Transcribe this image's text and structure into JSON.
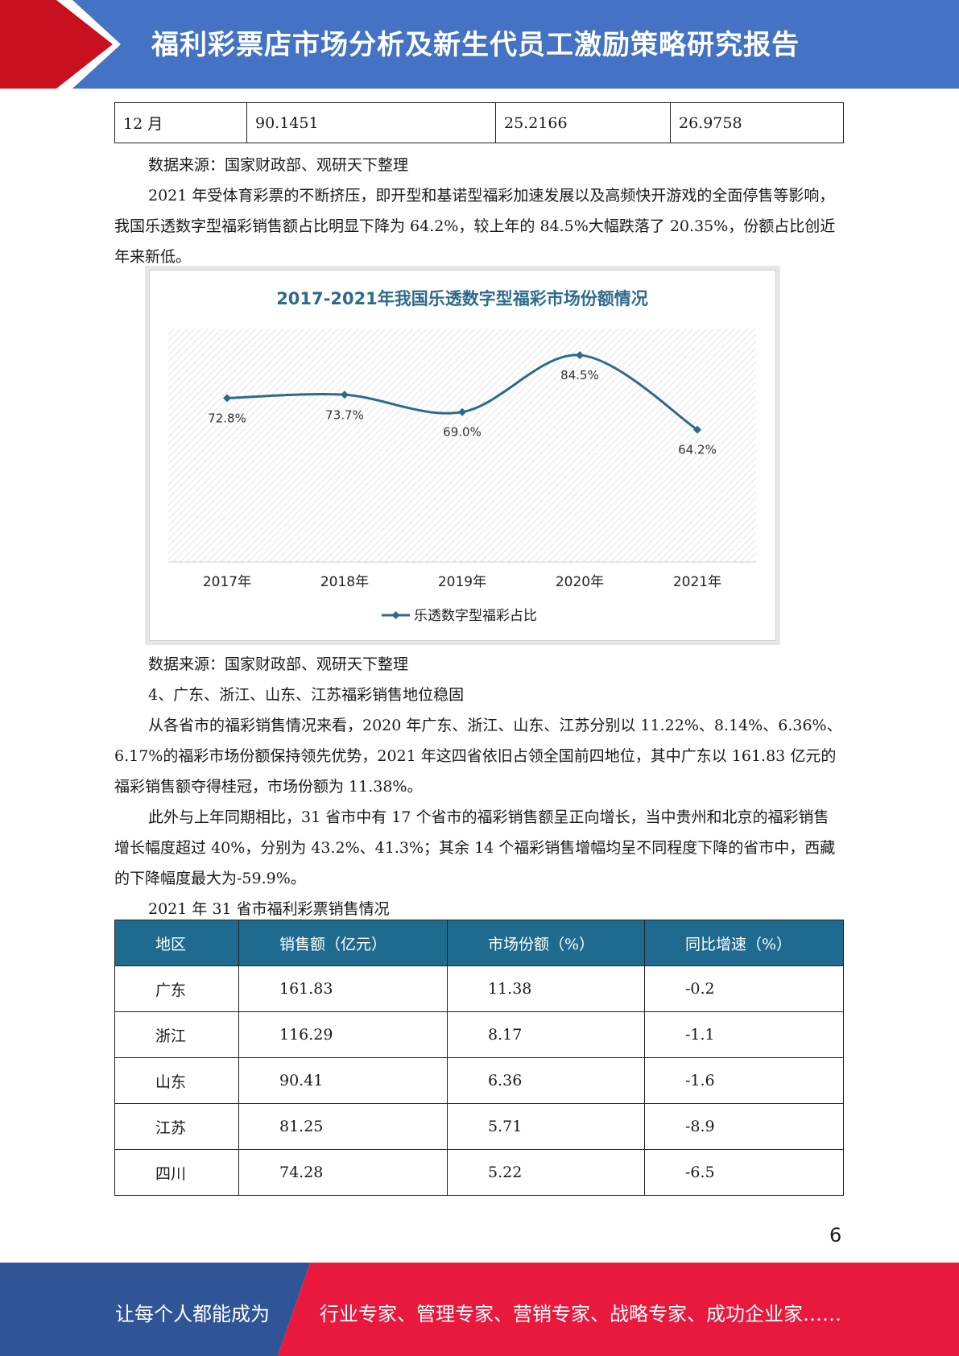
{
  "header": {
    "title": "福利彩票店市场分析及新生代员工激励策略研究报告",
    "accent_red": "#c8101e",
    "accent_blue": "#4472c4"
  },
  "top_table": {
    "row": [
      "12 月",
      "90.1451",
      "25.2166",
      "26.9758"
    ]
  },
  "source1": "数据来源：国家财政部、观研天下整理",
  "para1": "2021 年受体育彩票的不断挤压，即开型和基诺型福彩加速发展以及高频快开游戏的全面停售等影响，我国乐透数字型福彩销售额占比明显下降为 64.2%，较上年的 84.5%大幅跌落了 20.35%，份额占比创近年来新低。",
  "chart_data": {
    "type": "line",
    "title": "2017-2021年我国乐透数字型福彩市场份额情况",
    "categories": [
      "2017年",
      "2018年",
      "2019年",
      "2020年",
      "2021年"
    ],
    "series": [
      {
        "name": "乐透数字型福彩占比",
        "values": [
          72.8,
          73.7,
          69.0,
          84.5,
          64.2
        ],
        "color": "#2e6b8a"
      }
    ],
    "data_labels": [
      "72.8%",
      "73.7%",
      "69.0%",
      "84.5%",
      "64.2%"
    ],
    "ylim": [
      0,
      90
    ],
    "legend": "bottom-center",
    "grid": false
  },
  "source2": "数据来源：国家财政部、观研天下整理",
  "heading4": "4、广东、浙江、山东、江苏福彩销售地位稳固",
  "para2": "从各省市的福彩销售情况来看，2020 年广东、浙江、山东、江苏分别以 11.22%、8.14%、6.36%、6.17%的福彩市场份额保持领先优势，2021 年这四省依旧占领全国前四地位，其中广东以 161.83 亿元的福彩销售额夺得桂冠，市场份额为 11.38%。",
  "para3": "此外与上年同期相比，31 省市中有 17 个省市的福彩销售额呈正向增长，当中贵州和北京的福彩销售增长幅度超过 40%，分别为 43.2%、41.3%；其余 14 个福彩销售增幅均呈不同程度下降的省市中，西藏的下降幅度最大为-59.9%。",
  "table_caption": "2021 年 31 省市福利彩票销售情况",
  "prov_table": {
    "headers": [
      "地区",
      "销售额（亿元）",
      "市场份额（%）",
      "同比增速（%）"
    ],
    "rows": [
      [
        "广东",
        "161.83",
        "11.38",
        "-0.2"
      ],
      [
        "浙江",
        "116.29",
        "8.17",
        "-1.1"
      ],
      [
        "山东",
        "90.41",
        "6.36",
        "-1.6"
      ],
      [
        "江苏",
        "81.25",
        "5.71",
        "-8.9"
      ],
      [
        "四川",
        "74.28",
        "5.22",
        "-6.5"
      ]
    ]
  },
  "page_number": "6",
  "footer": {
    "left": "让每个人都能成为",
    "right": "行业专家、管理专家、营销专家、战略专家、成功企业家……"
  }
}
